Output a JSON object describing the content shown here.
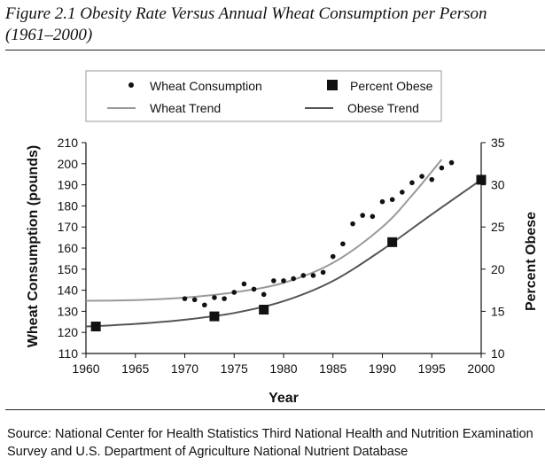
{
  "header": {
    "title": "Figure 2.1  Obesity Rate Versus Annual Wheat Consumption per Person (1961–2000)"
  },
  "footer": {
    "source": "Source: National Center for Health Statistics Third National Health and Nutrition Examination Survey and U.S. Department of Agriculture National Nutrient Database"
  },
  "chart_data": {
    "type": "scatter",
    "title": "Figure 2.1  Obesity Rate Versus Annual Wheat Consumption per Person (1961–2000)",
    "xlabel": "Year",
    "ylabel": "Wheat Consumption (pounds)",
    "y2label": "Percent Obese",
    "xlim": [
      1960,
      2000
    ],
    "ylim": [
      110,
      210
    ],
    "y2lim": [
      10,
      35
    ],
    "x_ticks": [
      1960,
      1965,
      1970,
      1975,
      1980,
      1985,
      1990,
      1995,
      2000
    ],
    "y_ticks": [
      110,
      120,
      130,
      140,
      150,
      160,
      170,
      180,
      190,
      200,
      210
    ],
    "y2_ticks": [
      10,
      15,
      20,
      25,
      30,
      35
    ],
    "grid": false,
    "legend_position": "top",
    "series": [
      {
        "name": "Wheat Consumption",
        "axis": "left",
        "marker": "dot",
        "color": "#111111",
        "points": [
          {
            "x": 1970,
            "y": 136
          },
          {
            "x": 1971,
            "y": 135.5
          },
          {
            "x": 1972,
            "y": 133
          },
          {
            "x": 1973,
            "y": 136.5
          },
          {
            "x": 1974,
            "y": 136
          },
          {
            "x": 1975,
            "y": 139
          },
          {
            "x": 1976,
            "y": 143
          },
          {
            "x": 1977,
            "y": 140.5
          },
          {
            "x": 1978,
            "y": 138
          },
          {
            "x": 1979,
            "y": 144.5
          },
          {
            "x": 1980,
            "y": 144.5
          },
          {
            "x": 1981,
            "y": 145.5
          },
          {
            "x": 1982,
            "y": 147
          },
          {
            "x": 1983,
            "y": 147
          },
          {
            "x": 1984,
            "y": 148.5
          },
          {
            "x": 1985,
            "y": 156
          },
          {
            "x": 1986,
            "y": 162
          },
          {
            "x": 1987,
            "y": 171.5
          },
          {
            "x": 1988,
            "y": 175.5
          },
          {
            "x": 1989,
            "y": 175
          },
          {
            "x": 1990,
            "y": 182
          },
          {
            "x": 1991,
            "y": 183
          },
          {
            "x": 1992,
            "y": 186.5
          },
          {
            "x": 1993,
            "y": 191
          },
          {
            "x": 1994,
            "y": 194
          },
          {
            "x": 1995,
            "y": 192.5
          },
          {
            "x": 1996,
            "y": 198
          },
          {
            "x": 1997,
            "y": 200.5
          }
        ]
      },
      {
        "name": "Percent Obese",
        "axis": "right",
        "marker": "square",
        "color": "#111111",
        "points": [
          {
            "x": 1961,
            "y": 13.2
          },
          {
            "x": 1973,
            "y": 14.4
          },
          {
            "x": 1978,
            "y": 15.2
          },
          {
            "x": 1991,
            "y": 23.2
          },
          {
            "x": 2000,
            "y": 30.6
          }
        ]
      },
      {
        "name": "Wheat Trend",
        "axis": "left",
        "marker": "line",
        "color": "#999999",
        "points": [
          {
            "x": 1960,
            "y": 135
          },
          {
            "x": 1965,
            "y": 135.3
          },
          {
            "x": 1970,
            "y": 136.5
          },
          {
            "x": 1975,
            "y": 139
          },
          {
            "x": 1980,
            "y": 143.5
          },
          {
            "x": 1985,
            "y": 153
          },
          {
            "x": 1990,
            "y": 170
          },
          {
            "x": 1993,
            "y": 185
          },
          {
            "x": 1996,
            "y": 202
          }
        ]
      },
      {
        "name": "Obese Trend",
        "axis": "right",
        "marker": "line",
        "color": "#555555",
        "points": [
          {
            "x": 1960,
            "y": 13.2
          },
          {
            "x": 1965,
            "y": 13.5
          },
          {
            "x": 1970,
            "y": 14.0
          },
          {
            "x": 1975,
            "y": 14.8
          },
          {
            "x": 1980,
            "y": 16.2
          },
          {
            "x": 1985,
            "y": 18.6
          },
          {
            "x": 1990,
            "y": 22.3
          },
          {
            "x": 1995,
            "y": 26.5
          },
          {
            "x": 2000,
            "y": 30.6
          }
        ]
      }
    ]
  }
}
